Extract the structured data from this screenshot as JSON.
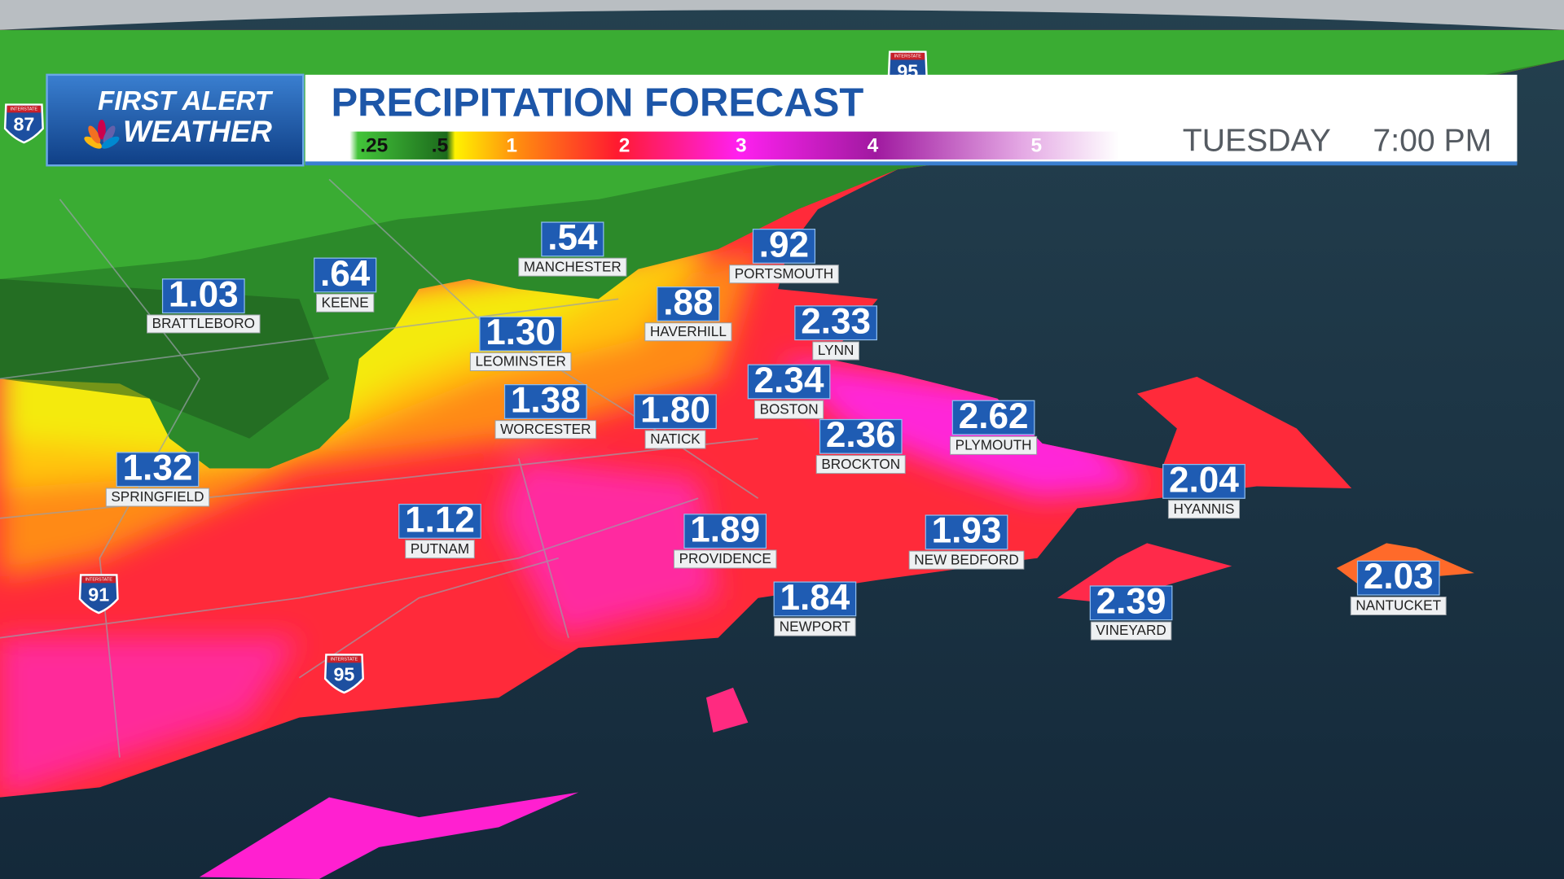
{
  "header": {
    "logo": {
      "line1": "FIRST ALERT",
      "line2": "WEATHER"
    },
    "title": "PRECIPITATION FORECAST",
    "day": "TUESDAY",
    "time": "7:00 PM"
  },
  "legend": {
    "labels": [
      ".25",
      ".5",
      "1",
      "2",
      "3",
      "4",
      "5"
    ]
  },
  "cities": [
    {
      "name": "BRATTLEBORO",
      "value": "1.03"
    },
    {
      "name": "KEENE",
      "value": ".64"
    },
    {
      "name": "MANCHESTER",
      "value": ".54"
    },
    {
      "name": "PORTSMOUTH",
      "value": ".92"
    },
    {
      "name": "HAVERHILL",
      "value": ".88"
    },
    {
      "name": "LEOMINSTER",
      "value": "1.30"
    },
    {
      "name": "LYNN",
      "value": "2.33"
    },
    {
      "name": "BOSTON",
      "value": "2.34"
    },
    {
      "name": "WORCESTER",
      "value": "1.38"
    },
    {
      "name": "NATICK",
      "value": "1.80"
    },
    {
      "name": "BROCKTON",
      "value": "2.36"
    },
    {
      "name": "PLYMOUTH",
      "value": "2.62"
    },
    {
      "name": "SPRINGFIELD",
      "value": "1.32"
    },
    {
      "name": "HYANNIS",
      "value": "2.04"
    },
    {
      "name": "PUTNAM",
      "value": "1.12"
    },
    {
      "name": "PROVIDENCE",
      "value": "1.89"
    },
    {
      "name": "NEW BEDFORD",
      "value": "1.93"
    },
    {
      "name": "NEWPORT",
      "value": "1.84"
    },
    {
      "name": "VINEYARD",
      "value": "2.39"
    },
    {
      "name": "NANTUCKET",
      "value": "2.03"
    }
  ],
  "shields": [
    {
      "label": "INTERSTATE",
      "number": "95"
    },
    {
      "label": "INTERSTATE",
      "number": "87"
    },
    {
      "label": "INTERSTATE",
      "number": "91"
    },
    {
      "label": "INTERSTATE",
      "number": "95"
    }
  ]
}
